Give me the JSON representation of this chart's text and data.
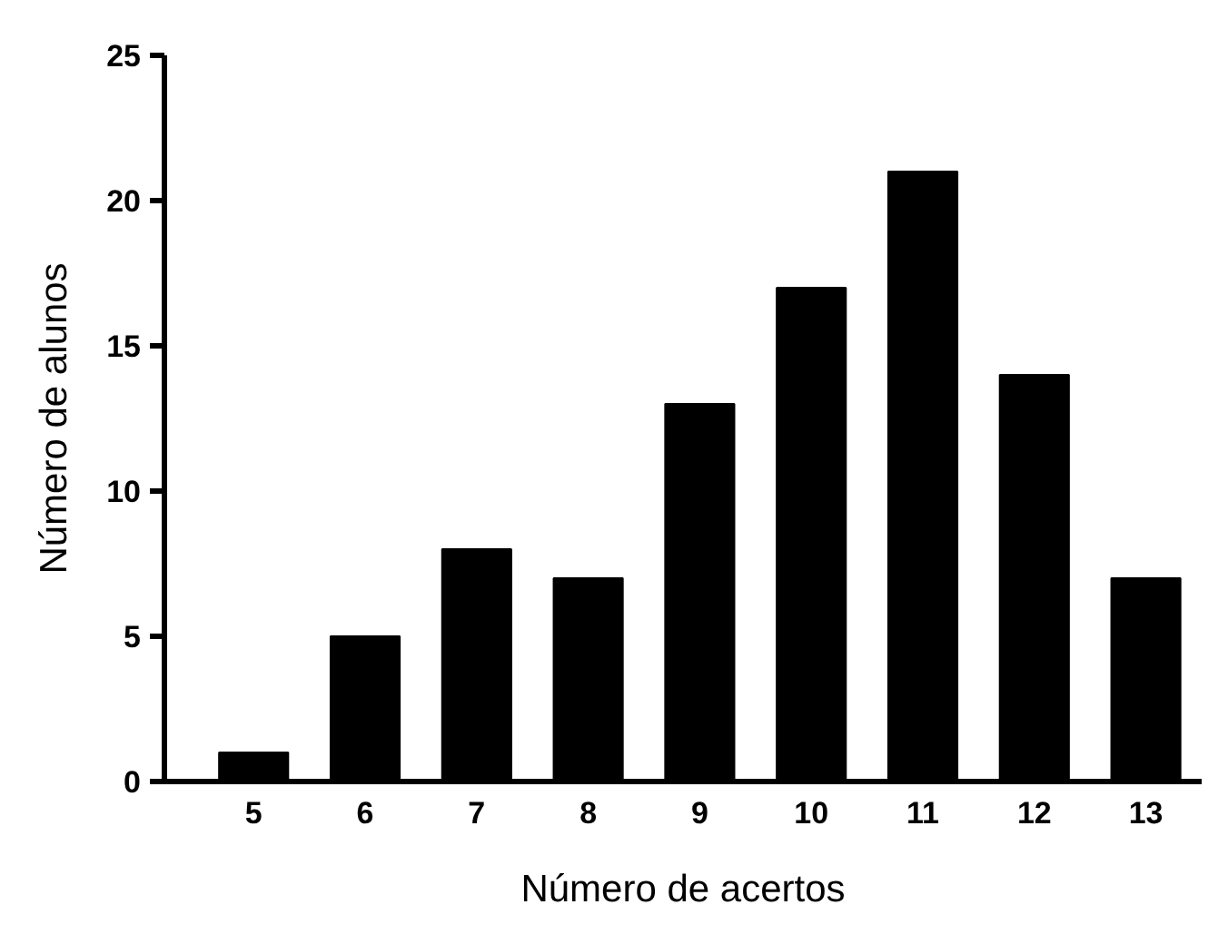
{
  "chart_data": {
    "type": "bar",
    "xlabel": "Número de acertos",
    "ylabel": "Número de alunos",
    "categories": [
      "5",
      "6",
      "7",
      "8",
      "9",
      "10",
      "11",
      "12",
      "13"
    ],
    "values": [
      1,
      5,
      8,
      7,
      13,
      17,
      21,
      14,
      7
    ],
    "color": "#000000",
    "ylim": [
      0,
      25
    ],
    "yticks": [
      0,
      5,
      10,
      15,
      20,
      25
    ],
    "grid": false
  }
}
